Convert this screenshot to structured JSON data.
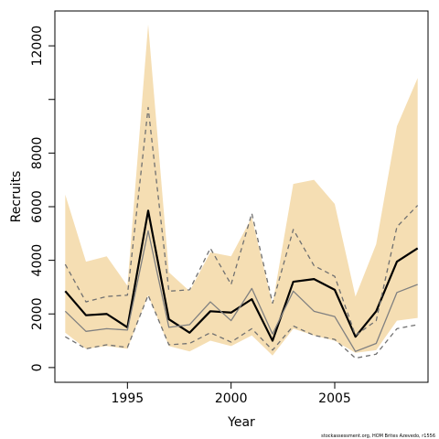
{
  "chart_data": {
    "type": "line",
    "xlabel": "Year",
    "ylabel": "Recruits",
    "xlim": [
      1991.5,
      2009.5
    ],
    "ylim": [
      -550,
      13300
    ],
    "x_ticks": [
      1995,
      2000,
      2005
    ],
    "x_tick_labels": [
      "1995",
      "2000",
      "2005"
    ],
    "y_ticks": [
      0,
      2000,
      4000,
      6000,
      8000,
      10000,
      12000
    ],
    "y_tick_labels": [
      "0",
      "2000",
      "4000",
      "6000",
      "8000",
      "",
      "12000"
    ],
    "years": [
      1992,
      1993,
      1994,
      1995,
      1996,
      1997,
      1998,
      1999,
      2000,
      2001,
      2002,
      2003,
      2004,
      2005,
      2006,
      2007,
      2008,
      2009
    ],
    "band": {
      "color": "#f5deb3",
      "lower": [
        1300,
        700,
        800,
        700,
        2700,
        800,
        600,
        1000,
        800,
        1200,
        450,
        1450,
        1200,
        1000,
        550,
        650,
        1750,
        1850
      ],
      "upper": [
        6450,
        3950,
        4150,
        3050,
        12800,
        3550,
        2850,
        4300,
        4150,
        5600,
        2350,
        6850,
        7000,
        6100,
        2650,
        4600,
        9000,
        10800
      ]
    },
    "series": [
      {
        "color": "#000000",
        "style": "solid-thick",
        "values": [
          2850,
          1950,
          2000,
          1500,
          5850,
          1800,
          1300,
          2100,
          2050,
          2550,
          1000,
          3200,
          3300,
          2900,
          1150,
          2100,
          3950,
          4450
        ]
      },
      {
        "color": "#808080",
        "style": "solid",
        "values": [
          2100,
          1350,
          1450,
          1400,
          5100,
          1500,
          1600,
          2450,
          1750,
          2950,
          1250,
          2850,
          2100,
          1900,
          600,
          900,
          2800,
          3100
        ]
      },
      {
        "color": "#707070",
        "style": "dashed",
        "values": [
          3850,
          2450,
          2650,
          2700,
          9700,
          2850,
          2900,
          4450,
          3100,
          5750,
          2400,
          5150,
          3800,
          3400,
          1200,
          1750,
          5250,
          6050
        ]
      },
      {
        "color": "#707070",
        "style": "dashed",
        "values": [
          1150,
          700,
          850,
          750,
          2700,
          850,
          900,
          1300,
          950,
          1450,
          650,
          1550,
          1200,
          1050,
          350,
          500,
          1450,
          1600
        ]
      }
    ],
    "credit": "stockassessment.org,  HOM  Brites  Azevedo,  r1556"
  }
}
